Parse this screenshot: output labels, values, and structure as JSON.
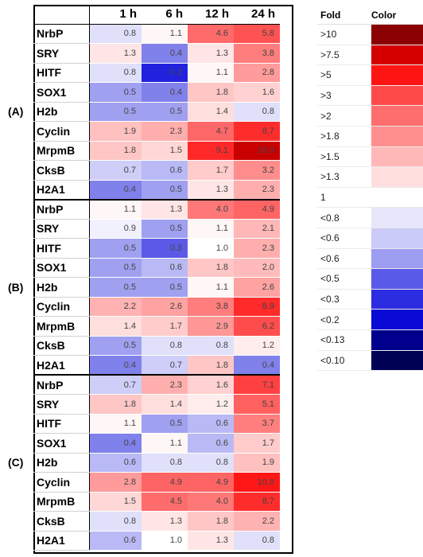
{
  "chart_data": {
    "type": "heatmap",
    "columns": [
      "1 h",
      "6 h",
      "12 h",
      "24 h"
    ],
    "panels": [
      {
        "label": "(A)",
        "rows": [
          {
            "gene": "NrbP",
            "values": [
              "0.8",
              "1.1",
              "4.6",
              "5.8"
            ]
          },
          {
            "gene": "SRY",
            "values": [
              "1.3",
              "0.4",
              "1.3",
              "3.8"
            ]
          },
          {
            "gene": "HITF",
            "values": [
              "0.8",
              "0.2",
              "1.1",
              "2.8"
            ]
          },
          {
            "gene": "SOX1",
            "values": [
              "0.5",
              "0.4",
              "1.8",
              "1.6"
            ]
          },
          {
            "gene": "H2b",
            "values": [
              "0.5",
              "0.5",
              "1.4",
              "0.8"
            ]
          },
          {
            "gene": "Cyclin",
            "values": [
              "1.9",
              "2.3",
              "4.7",
              "8.7"
            ]
          },
          {
            "gene": "MrpmB",
            "values": [
              "1.8",
              "1.5",
              "9.1",
              "16.9"
            ]
          },
          {
            "gene": "CksB",
            "values": [
              "0.7",
              "0.6",
              "1.7",
              "3.2"
            ]
          },
          {
            "gene": "H2A1",
            "values": [
              "0.4",
              "0.5",
              "1.3",
              "2.3"
            ]
          }
        ]
      },
      {
        "label": "(B)",
        "rows": [
          {
            "gene": "NrbP",
            "values": [
              "1.1",
              "1.3",
              "4.0",
              "4.9"
            ]
          },
          {
            "gene": "SRY",
            "values": [
              "0.9",
              "0.5",
              "1.1",
              "2.1"
            ]
          },
          {
            "gene": "HITF",
            "values": [
              "0.5",
              "0.3",
              "1.0",
              "2.3"
            ]
          },
          {
            "gene": "SOX1",
            "values": [
              "0.5",
              "0.6",
              "1.8",
              "2.0"
            ]
          },
          {
            "gene": "H2b",
            "values": [
              "0.5",
              "0.5",
              "1.1",
              "2.6"
            ]
          },
          {
            "gene": "Cyclin",
            "values": [
              "2.2",
              "2.6",
              "3.8",
              "8.9"
            ]
          },
          {
            "gene": "MrpmB",
            "values": [
              "1.4",
              "1.7",
              "2.9",
              "6.2"
            ]
          },
          {
            "gene": "CksB",
            "values": [
              "0.5",
              "0.8",
              "0.8",
              "1.2"
            ]
          },
          {
            "gene": "H2A1",
            "values": [
              "0.4",
              "0.7",
              "1.8",
              "0.4"
            ]
          }
        ]
      },
      {
        "label": "(C)",
        "rows": [
          {
            "gene": "NrbP",
            "values": [
              "0.7",
              "2.3",
              "1.6",
              "7.1"
            ]
          },
          {
            "gene": "SRY",
            "values": [
              "1.8",
              "1.4",
              "1.2",
              "5.1"
            ]
          },
          {
            "gene": "HITF",
            "values": [
              "1.1",
              "0.5",
              "0.6",
              "3.7"
            ]
          },
          {
            "gene": "SOX1",
            "values": [
              "0.4",
              "1.1",
              "0.6",
              "1.7"
            ]
          },
          {
            "gene": "H2b",
            "values": [
              "0.6",
              "0.8",
              "0.8",
              "1.9"
            ]
          },
          {
            "gene": "Cyclin",
            "values": [
              "2.8",
              "4.9",
              "4.9",
              "10.8"
            ]
          },
          {
            "gene": "MrpmB",
            "values": [
              "1.5",
              "4.5",
              "4.0",
              "8.7"
            ]
          },
          {
            "gene": "CksB",
            "values": [
              "0.8",
              "1.3",
              "1.8",
              "2.2"
            ]
          },
          {
            "gene": "H2A1",
            "values": [
              "0.6",
              "1.0",
              "1.3",
              "0.8"
            ]
          }
        ]
      }
    ],
    "legend": {
      "header_fold": "Fold",
      "header_color": "Color",
      "entries": [
        {
          "label": ">10",
          "color": "#8b0000"
        },
        {
          "label": ">7.5",
          "color": "#d40000"
        },
        {
          "label": ">5",
          "color": "#ff1414"
        },
        {
          "label": ">3",
          "color": "#ff4a4a"
        },
        {
          "label": ">2",
          "color": "#ff6e6e"
        },
        {
          "label": ">1.8",
          "color": "#ff8f8f"
        },
        {
          "label": ">1.5",
          "color": "#ffb8b8"
        },
        {
          "label": ">1.3",
          "color": "#ffdede"
        },
        {
          "label": "1",
          "color": "#ffffff"
        },
        {
          "label": "<0.8",
          "color": "#e6e6fb"
        },
        {
          "label": "<0.6",
          "color": "#cbcbf7"
        },
        {
          "label": "<0.6",
          "color": "#9c9cf1"
        },
        {
          "label": "<0.5",
          "color": "#5a5ae8"
        },
        {
          "label": "<0.3",
          "color": "#2c2ce0"
        },
        {
          "label": "<0.2",
          "color": "#0a0ad6"
        },
        {
          "label": "<0.13",
          "color": "#00008c"
        },
        {
          "label": "<0.10",
          "color": "#000055"
        }
      ]
    }
  }
}
